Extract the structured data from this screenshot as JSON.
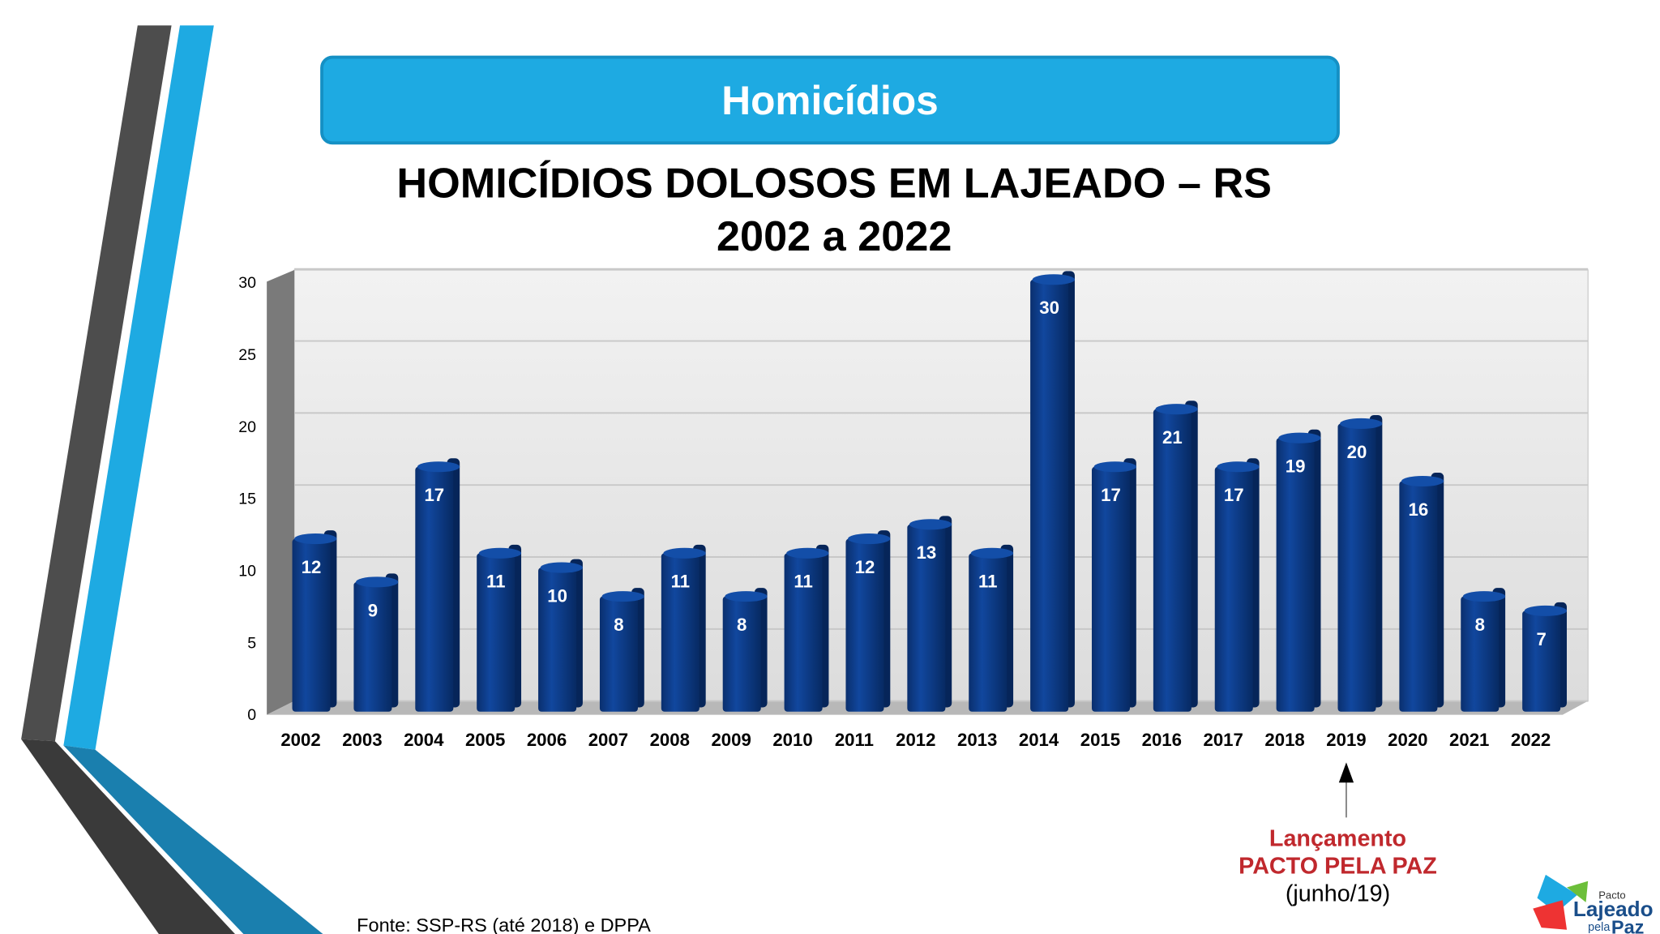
{
  "header": {
    "title": "Homicídios"
  },
  "chart_data": {
    "type": "bar",
    "title": "HOMICÍDIOS DOLOSOS EM LAJEADO – RS",
    "subtitle": "2002 a 2022",
    "categories": [
      "2002",
      "2003",
      "2004",
      "2005",
      "2006",
      "2007",
      "2008",
      "2009",
      "2010",
      "2011",
      "2012",
      "2013",
      "2014",
      "2015",
      "2016",
      "2017",
      "2018",
      "2019",
      "2020",
      "2021",
      "2022"
    ],
    "values": [
      12,
      9,
      17,
      11,
      10,
      8,
      11,
      8,
      11,
      12,
      13,
      11,
      30,
      17,
      21,
      17,
      19,
      20,
      16,
      8,
      7
    ],
    "color": "#0b3f8f",
    "ylim": [
      0,
      30
    ],
    "yticks": [
      0,
      5,
      10,
      15,
      20,
      25,
      30
    ],
    "grid": true,
    "annotation": {
      "category": "2019",
      "lines": [
        "Lançamento",
        "PACTO PELA PAZ",
        "(junho/19)"
      ]
    }
  },
  "source": "Fonte: SSP-RS (até 2018) e DPPA",
  "logo": {
    "top": "Pacto",
    "middle": "Lajeado",
    "bottom_small": "pela",
    "bottom": "Paz"
  }
}
